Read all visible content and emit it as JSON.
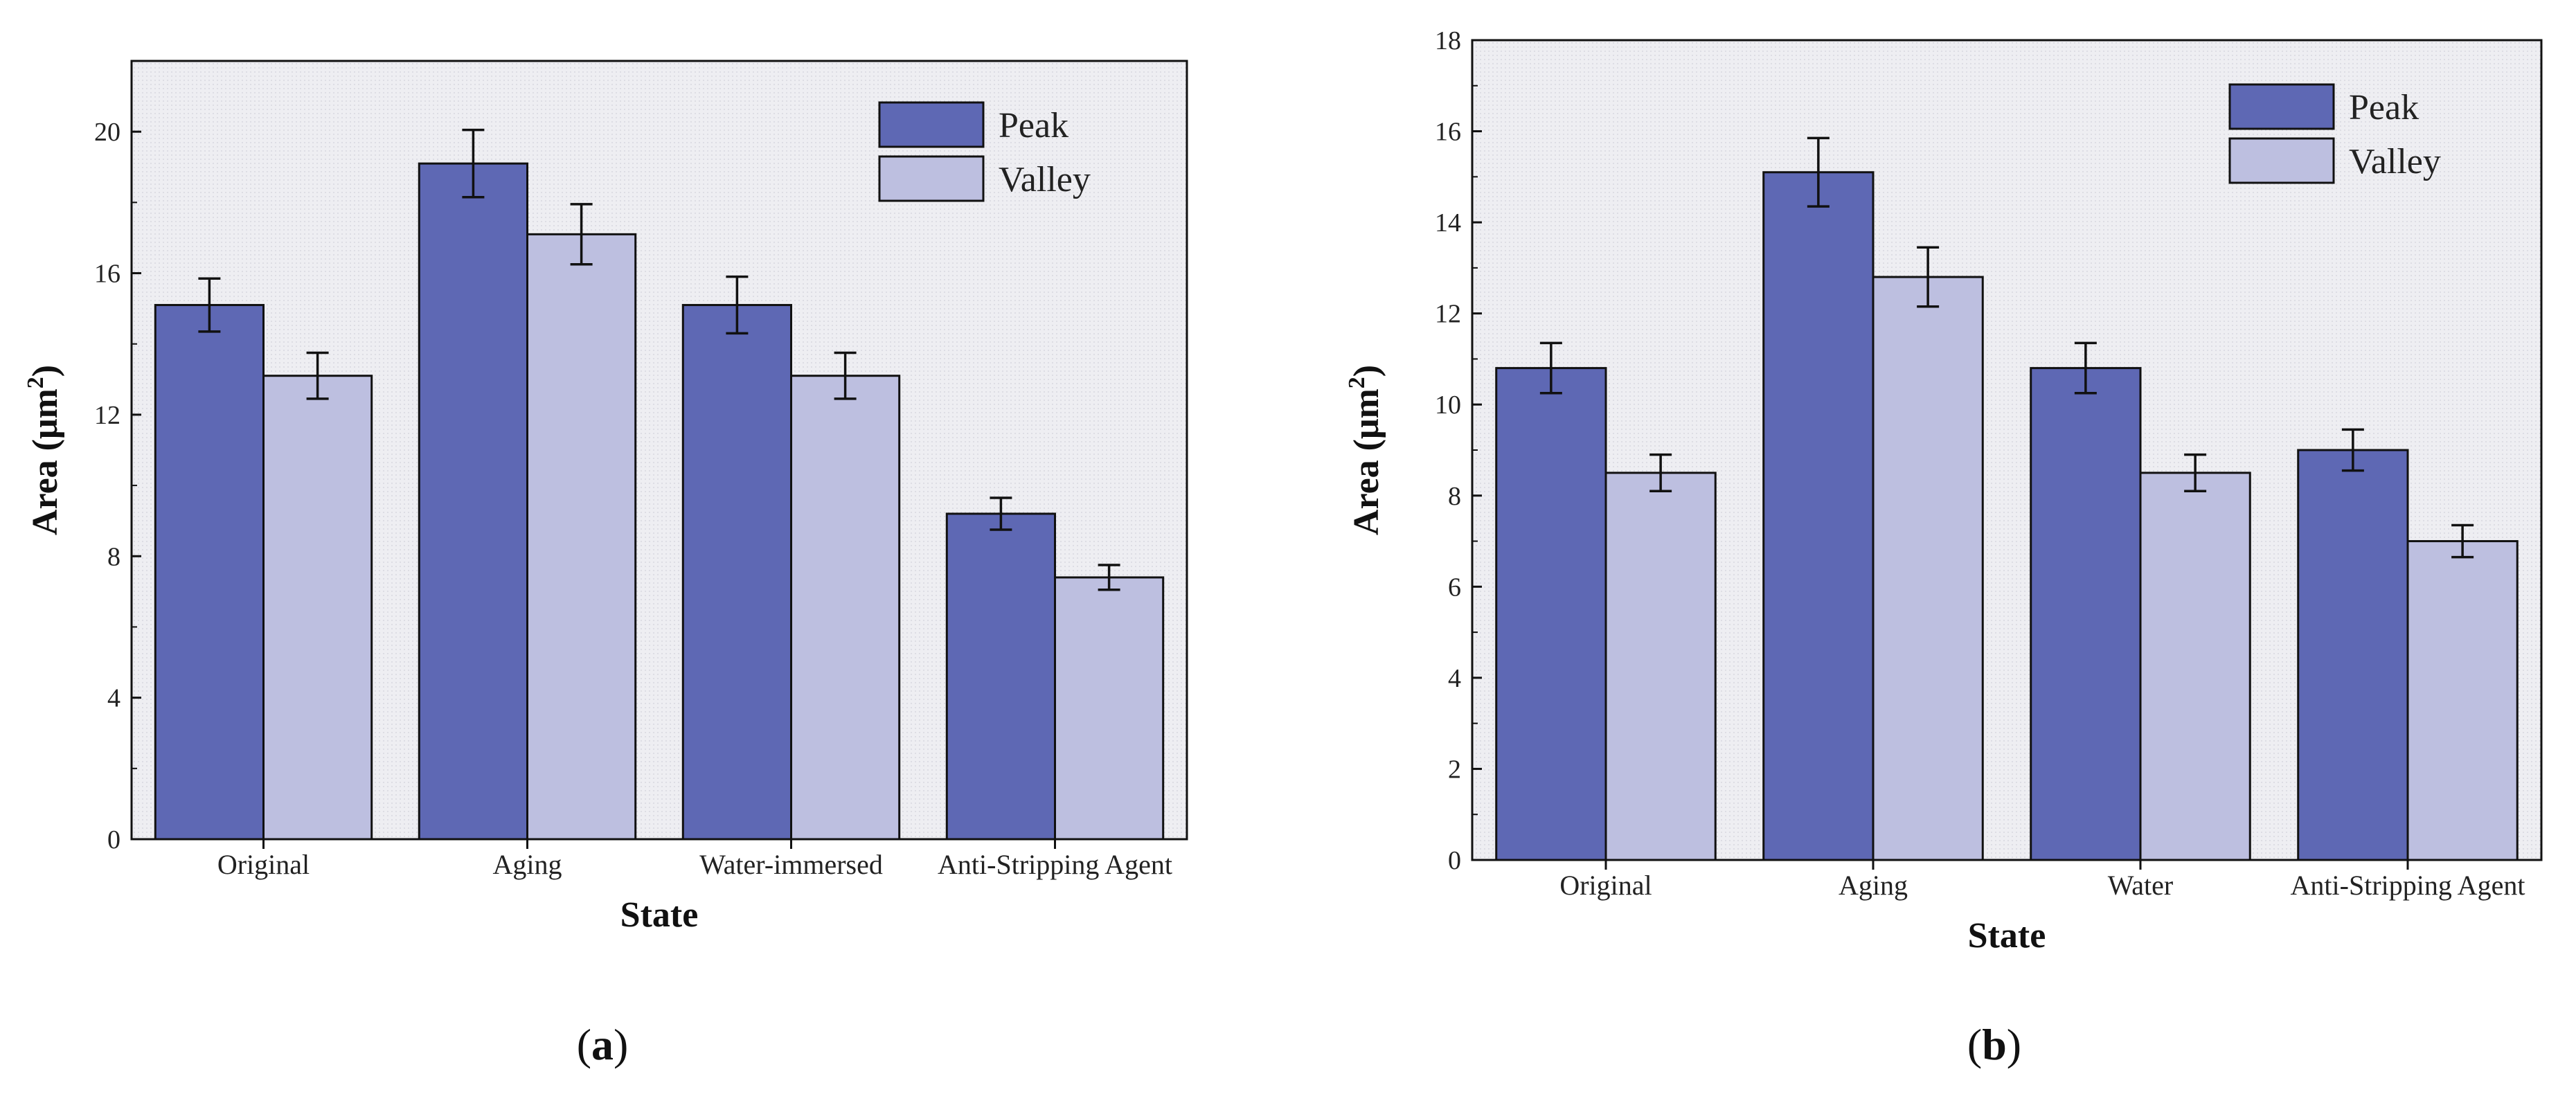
{
  "colors": {
    "peak": "#5E68B4",
    "valley": "#BDBFE0",
    "panel_bg": "#ECECF0",
    "axis": "#111111"
  },
  "chart_data": [
    {
      "type": "bar",
      "panel_label": "a",
      "xlabel": "State",
      "ylabel": "Area (μm",
      "ylabel_sup": "2",
      "ylabel_close": ")",
      "categories": [
        "Original",
        "Aging",
        "Water-immersed",
        "Anti-Stripping Agent"
      ],
      "ylim": [
        0,
        22
      ],
      "yticks": [
        0,
        4,
        8,
        12,
        16,
        20
      ],
      "legend_position": "top-right",
      "series": [
        {
          "name": "Peak",
          "values": [
            15.1,
            19.1,
            15.1,
            9.2
          ],
          "errors": [
            0.75,
            0.95,
            0.8,
            0.45
          ]
        },
        {
          "name": "Valley",
          "values": [
            13.1,
            17.1,
            13.1,
            7.4
          ],
          "errors": [
            0.65,
            0.85,
            0.65,
            0.35
          ]
        }
      ]
    },
    {
      "type": "bar",
      "panel_label": "b",
      "xlabel": "State",
      "ylabel": "Area (μm",
      "ylabel_sup": "2",
      "ylabel_close": ")",
      "categories": [
        "Original",
        "Aging",
        "Water",
        "Anti-Stripping Agent"
      ],
      "ylim": [
        0,
        18
      ],
      "yticks": [
        0,
        2,
        4,
        6,
        8,
        10,
        12,
        14,
        16,
        18
      ],
      "legend_position": "top-right",
      "series": [
        {
          "name": "Peak",
          "values": [
            10.8,
            15.1,
            10.8,
            9.0
          ],
          "errors": [
            0.55,
            0.75,
            0.55,
            0.45
          ]
        },
        {
          "name": "Valley",
          "values": [
            8.5,
            12.8,
            8.5,
            7.0
          ],
          "errors": [
            0.4,
            0.65,
            0.4,
            0.35
          ]
        }
      ]
    }
  ]
}
